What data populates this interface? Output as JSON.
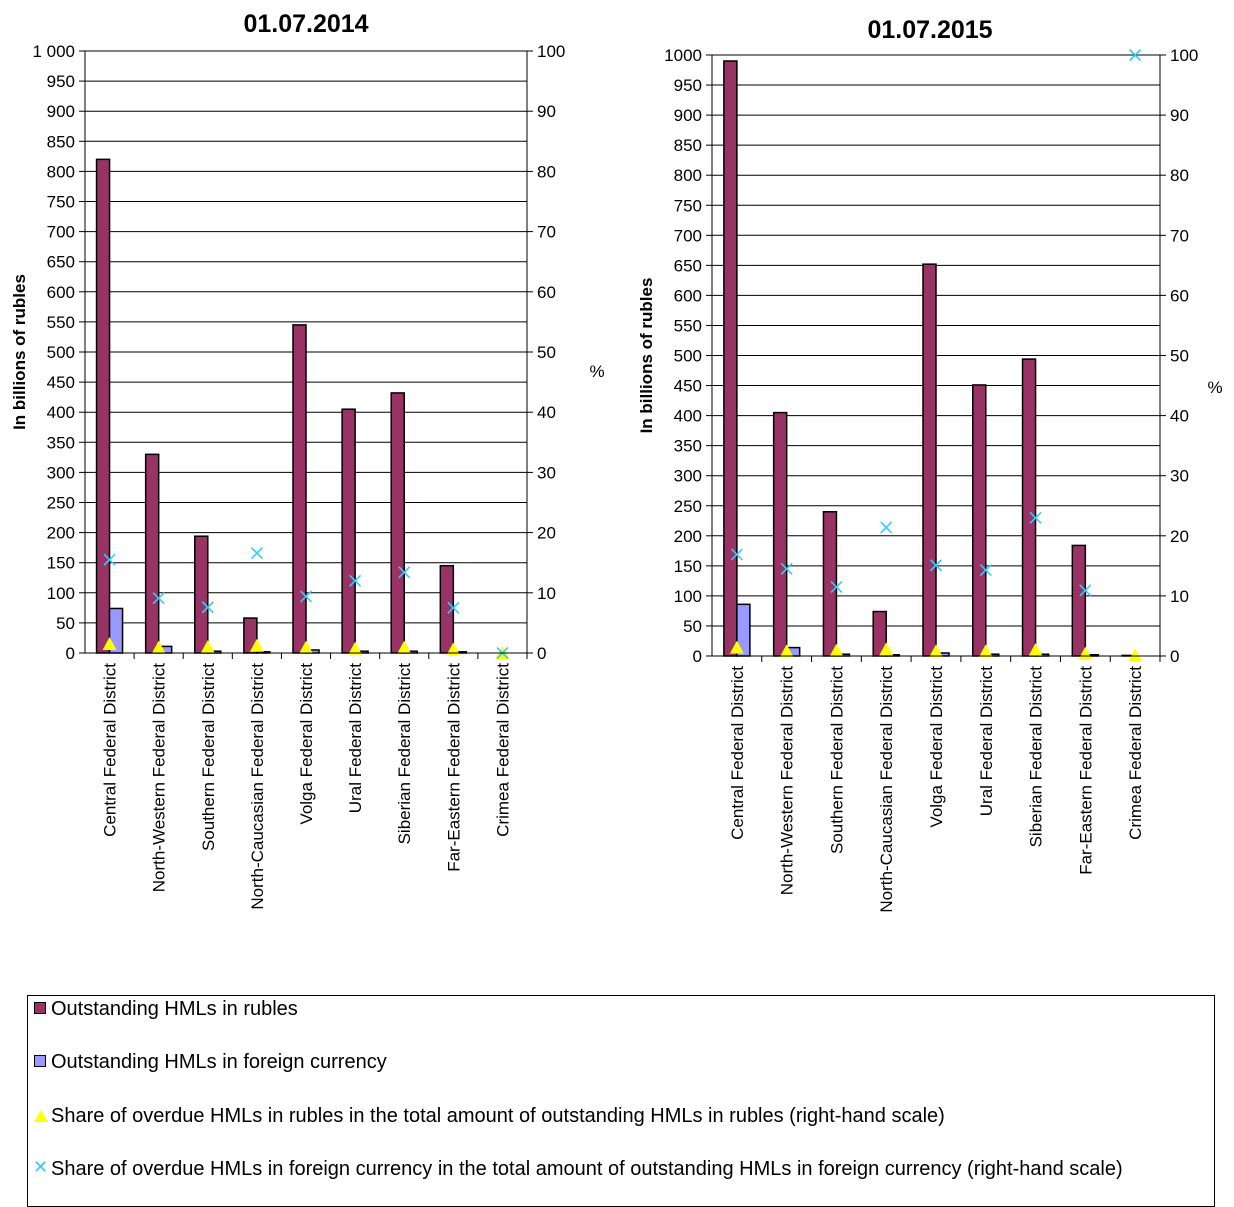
{
  "colors": {
    "rubles": "#993366",
    "foreign": "#9999ff",
    "share_rubles": "#ffff00",
    "share_foreign": "#33ccff"
  },
  "legend": {
    "items": [
      {
        "label": "Outstanding HMLs in rubles",
        "marker": "square-maroon"
      },
      {
        "label": "Outstanding HMLs in foreign currency",
        "marker": "square-lavender"
      },
      {
        "label": "Share of overdue HMLs in rubles in the total amount of outstanding HMLs in rubles (right-hand scale)",
        "marker": "triangle-yellow"
      },
      {
        "label": "Share of overdue HMLs in foreign currency in the total amount of outstanding HMLs in foreign currency (right-hand scale)",
        "marker": "cross-cyan"
      }
    ]
  },
  "chart_data": [
    {
      "type": "bar",
      "title": "01.07.2014",
      "ylabel": "In billions of rubles",
      "y2label": "%",
      "ylim": [
        0,
        1000
      ],
      "y2lim": [
        0,
        100
      ],
      "yticks": [
        "0",
        "50",
        "100",
        "150",
        "200",
        "250",
        "300",
        "350",
        "400",
        "450",
        "500",
        "550",
        "600",
        "650",
        "700",
        "750",
        "800",
        "850",
        "900",
        "950",
        "1 000"
      ],
      "y2ticks": [
        "0",
        "10",
        "20",
        "30",
        "40",
        "50",
        "60",
        "70",
        "80",
        "90",
        "100"
      ],
      "grid": true,
      "categories": [
        "Central Federal District",
        "North-Western Federal District",
        "Southern Federal District",
        "North-Caucasian Federal District",
        "Volga Federal District",
        "Ural Federal District",
        "Siberian Federal District",
        "Far-Eastern Federal District",
        "Crimea Federal District"
      ],
      "series": [
        {
          "name": "Outstanding HMLs in rubles",
          "axis": "left",
          "kind": "bar",
          "values": [
            820,
            330,
            194,
            58,
            545,
            405,
            432,
            145,
            0
          ]
        },
        {
          "name": "Outstanding HMLs in foreign currency",
          "axis": "left",
          "kind": "bar",
          "values": [
            74,
            11,
            3,
            2,
            5,
            3,
            3,
            2,
            0
          ]
        },
        {
          "name": "Share of overdue HMLs in rubles in the total amount of outstanding HMLs in rubles (right-hand scale)",
          "axis": "right",
          "kind": "marker-triangle",
          "values": [
            1.5,
            0.9,
            1.0,
            1.2,
            0.9,
            0.7,
            0.9,
            0.6,
            0.0
          ]
        },
        {
          "name": "Share of overdue HMLs in foreign currency in the total amount of outstanding HMLs in foreign currency (right-hand scale)",
          "axis": "right",
          "kind": "marker-cross",
          "values": [
            15.5,
            9.1,
            7.6,
            16.6,
            9.4,
            12.0,
            13.4,
            7.5,
            0.0
          ]
        }
      ]
    },
    {
      "type": "bar",
      "title": "01.07.2015",
      "ylabel": "In billions of rubles",
      "y2label": "%",
      "ylim": [
        0,
        1000
      ],
      "y2lim": [
        0,
        100
      ],
      "yticks": [
        "0",
        "50",
        "100",
        "150",
        "200",
        "250",
        "300",
        "350",
        "400",
        "450",
        "500",
        "550",
        "600",
        "650",
        "700",
        "750",
        "800",
        "850",
        "900",
        "950",
        "1000"
      ],
      "y2ticks": [
        "0",
        "10",
        "20",
        "30",
        "40",
        "50",
        "60",
        "70",
        "80",
        "90",
        "100"
      ],
      "grid": true,
      "categories": [
        "Central Federal District",
        "North-Western Federal District",
        "Southern Federal District",
        "North-Caucasian Federal District",
        "Volga Federal District",
        "Ural Federal District",
        "Siberian Federal District",
        "Far-Eastern Federal District",
        "Crimea Federal District"
      ],
      "series": [
        {
          "name": "Outstanding HMLs in rubles",
          "axis": "left",
          "kind": "bar",
          "values": [
            990,
            405,
            240,
            74,
            652,
            451,
            494,
            184,
            1
          ]
        },
        {
          "name": "Outstanding HMLs in foreign currency",
          "axis": "left",
          "kind": "bar",
          "values": [
            86,
            14,
            3,
            2,
            5,
            3,
            3,
            2,
            0
          ]
        },
        {
          "name": "Share of overdue HMLs in rubles in the total amount of outstanding HMLs in rubles (right-hand scale)",
          "axis": "right",
          "kind": "marker-triangle",
          "values": [
            1.4,
            0.8,
            0.9,
            1.1,
            0.8,
            0.8,
            1.0,
            0.4,
            0.1
          ]
        },
        {
          "name": "Share of overdue HMLs in foreign currency in the total amount of outstanding HMLs in foreign currency (right-hand scale)",
          "axis": "right",
          "kind": "marker-cross",
          "values": [
            16.9,
            14.5,
            11.5,
            21.4,
            15.1,
            14.3,
            23.0,
            10.9,
            100.0
          ]
        }
      ]
    }
  ]
}
